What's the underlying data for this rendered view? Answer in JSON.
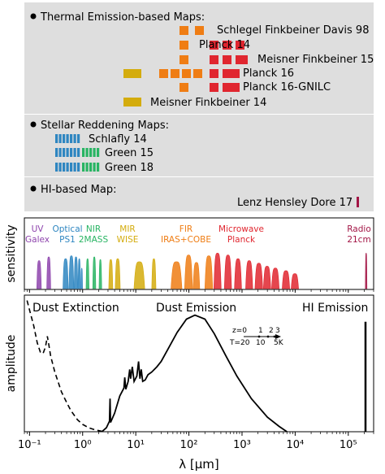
{
  "sections": [
    {
      "title": "Thermal Emission-based Maps:",
      "maps": [
        {
          "name": "Schlegel Finkbeiner Davis 98"
        },
        {
          "name": "Planck 14"
        },
        {
          "name": "Meisner Finkbeiner 15"
        },
        {
          "name": "Planck 16"
        },
        {
          "name": "Planck 16-GNILC"
        },
        {
          "name": "Meisner Finkbeiner 14"
        }
      ]
    },
    {
      "title": "Stellar Reddening Maps:",
      "maps": [
        {
          "name": "Schlafly 14"
        },
        {
          "name": "Green 15"
        },
        {
          "name": "Green 18"
        }
      ]
    },
    {
      "title": "HI-based Map:",
      "maps": [
        {
          "name": "Lenz Hensley Dore 17"
        }
      ]
    }
  ],
  "colors": {
    "uv": "#8e44ad",
    "optical": "#2e86c1",
    "nir": "#28b463",
    "mir": "#d4ac0d",
    "fir": "#ef7d14",
    "microwave": "#e0262f",
    "radio": "#a31545",
    "panel_bg": "#dedede",
    "panel_border": "#ffffff"
  },
  "chart_data": [
    {
      "type": "area",
      "ylabel": "sensitivity",
      "xscale": "log",
      "xlim": [
        0.08,
        300000
      ],
      "band_labels": [
        {
          "line1": "UV",
          "line2": "Galex",
          "color": "#8e44ad"
        },
        {
          "line1": "Optical",
          "line2": "PS1",
          "color": "#2e86c1"
        },
        {
          "line1": "NIR",
          "line2": "2MASS",
          "color": "#28b463"
        },
        {
          "line1": "MIR",
          "line2": "WISE",
          "color": "#d4ac0d"
        },
        {
          "line1": "FIR",
          "line2": "IRAS+COBE",
          "color": "#ef7d14"
        },
        {
          "line1": "Microwave",
          "line2": "Planck",
          "color": "#e0262f"
        },
        {
          "line1": "Radio",
          "line2": "21cm",
          "color": "#a31545"
        }
      ],
      "filters": [
        {
          "band": "uv",
          "center": 0.152,
          "width": 0.03,
          "height": 0.75
        },
        {
          "band": "uv",
          "center": 0.231,
          "width": 0.04,
          "height": 0.85
        },
        {
          "band": "optical",
          "center": 0.481,
          "width": 0.11,
          "height": 0.8
        },
        {
          "band": "optical",
          "center": 0.617,
          "width": 0.13,
          "height": 0.88
        },
        {
          "band": "optical",
          "center": 0.752,
          "width": 0.12,
          "height": 0.85
        },
        {
          "band": "optical",
          "center": 0.866,
          "width": 0.09,
          "height": 0.8
        },
        {
          "band": "optical",
          "center": 0.962,
          "width": 0.07,
          "height": 0.55
        },
        {
          "band": "nir",
          "center": 1.24,
          "width": 0.16,
          "height": 0.8
        },
        {
          "band": "nir",
          "center": 1.66,
          "width": 0.22,
          "height": 0.85
        },
        {
          "band": "nir",
          "center": 2.16,
          "width": 0.25,
          "height": 0.78
        },
        {
          "band": "mir",
          "center": 3.4,
          "width": 0.6,
          "height": 0.78
        },
        {
          "band": "mir",
          "center": 4.6,
          "width": 1.0,
          "height": 0.8
        },
        {
          "band": "mir",
          "center": 12.0,
          "width": 5.5,
          "height": 0.72
        },
        {
          "band": "mir",
          "center": 22.0,
          "width": 4.0,
          "height": 0.8
        },
        {
          "band": "fir",
          "center": 60,
          "width": 28,
          "height": 0.72
        },
        {
          "band": "fir",
          "center": 100,
          "width": 34,
          "height": 0.9
        },
        {
          "band": "fir",
          "center": 140,
          "width": 40,
          "height": 0.7
        },
        {
          "band": "fir",
          "center": 240,
          "width": 80,
          "height": 0.88
        },
        {
          "band": "microwave",
          "center": 350,
          "width": 110,
          "height": 0.95
        },
        {
          "band": "microwave",
          "center": 550,
          "width": 170,
          "height": 0.9
        },
        {
          "band": "microwave",
          "center": 850,
          "width": 260,
          "height": 0.8
        },
        {
          "band": "microwave",
          "center": 1380,
          "width": 420,
          "height": 0.75
        },
        {
          "band": "microwave",
          "center": 2100,
          "width": 700,
          "height": 0.68
        },
        {
          "band": "microwave",
          "center": 3000,
          "width": 950,
          "height": 0.6
        },
        {
          "band": "microwave",
          "center": 4300,
          "width": 1400,
          "height": 0.55
        },
        {
          "band": "microwave",
          "center": 6800,
          "width": 2200,
          "height": 0.48
        },
        {
          "band": "microwave",
          "center": 10000,
          "width": 3200,
          "height": 0.4
        },
        {
          "band": "radio",
          "center": 211000,
          "width": 3000,
          "height": 0.95
        }
      ]
    },
    {
      "type": "line",
      "xlabel": "λ [μm]",
      "ylabel": "amplitude",
      "xscale": "log",
      "xlim": [
        0.08,
        300000
      ],
      "ylim": [
        0,
        1
      ],
      "xticks": [
        {
          "value": 0.1,
          "label": "10⁻¹"
        },
        {
          "value": 1,
          "label": "10⁰"
        },
        {
          "value": 10,
          "label": "10¹"
        },
        {
          "value": 100,
          "label": "10²"
        },
        {
          "value": 1000,
          "label": "10³"
        },
        {
          "value": 10000,
          "label": "10⁴"
        },
        {
          "value": 100000,
          "label": "10⁵"
        }
      ],
      "region_labels": [
        "Dust Extinction",
        "Dust Emission",
        "HI Emission"
      ],
      "redshift_axis": {
        "z_label": "z=0",
        "z_values": [
          "1",
          "2",
          "3"
        ],
        "t_label": "T=20",
        "t_values": [
          "10",
          "5K"
        ]
      },
      "extinction_curve": [
        [
          0.09,
          0.99
        ],
        [
          0.1,
          0.92
        ],
        [
          0.12,
          0.8
        ],
        [
          0.14,
          0.67
        ],
        [
          0.16,
          0.6
        ],
        [
          0.18,
          0.59
        ],
        [
          0.2,
          0.64
        ],
        [
          0.217,
          0.72
        ],
        [
          0.23,
          0.66
        ],
        [
          0.25,
          0.57
        ],
        [
          0.3,
          0.45
        ],
        [
          0.4,
          0.3
        ],
        [
          0.5,
          0.22
        ],
        [
          0.6,
          0.16
        ],
        [
          0.8,
          0.09
        ],
        [
          1.0,
          0.055
        ],
        [
          1.3,
          0.03
        ],
        [
          1.7,
          0.015
        ],
        [
          2.2,
          0.005
        ],
        [
          2.6,
          0.0
        ]
      ],
      "emission_curve": [
        [
          2.3,
          0.0
        ],
        [
          2.8,
          0.03
        ],
        [
          3.2,
          0.08
        ],
        [
          3.28,
          0.25
        ],
        [
          3.35,
          0.07
        ],
        [
          4.0,
          0.14
        ],
        [
          5.0,
          0.27
        ],
        [
          6.0,
          0.33
        ],
        [
          6.2,
          0.41
        ],
        [
          6.5,
          0.32
        ],
        [
          7.2,
          0.38
        ],
        [
          7.7,
          0.47
        ],
        [
          8.0,
          0.4
        ],
        [
          8.6,
          0.49
        ],
        [
          9.3,
          0.38
        ],
        [
          10.5,
          0.42
        ],
        [
          11.3,
          0.53
        ],
        [
          12.0,
          0.4
        ],
        [
          12.7,
          0.47
        ],
        [
          13.5,
          0.38
        ],
        [
          15.0,
          0.39
        ],
        [
          17.0,
          0.43
        ],
        [
          20.0,
          0.45
        ],
        [
          25.0,
          0.49
        ],
        [
          30.0,
          0.53
        ],
        [
          40.0,
          0.62
        ],
        [
          60.0,
          0.75
        ],
        [
          90.0,
          0.85
        ],
        [
          130.0,
          0.88
        ],
        [
          200.0,
          0.85
        ],
        [
          300.0,
          0.74
        ],
        [
          500.0,
          0.57
        ],
        [
          800.0,
          0.42
        ],
        [
          1500.0,
          0.25
        ],
        [
          3000.0,
          0.11
        ],
        [
          5000.0,
          0.04
        ],
        [
          7000.0,
          0.0
        ]
      ],
      "hi_line": [
        [
          211000,
          0.0
        ],
        [
          211000,
          0.83
        ]
      ]
    }
  ]
}
